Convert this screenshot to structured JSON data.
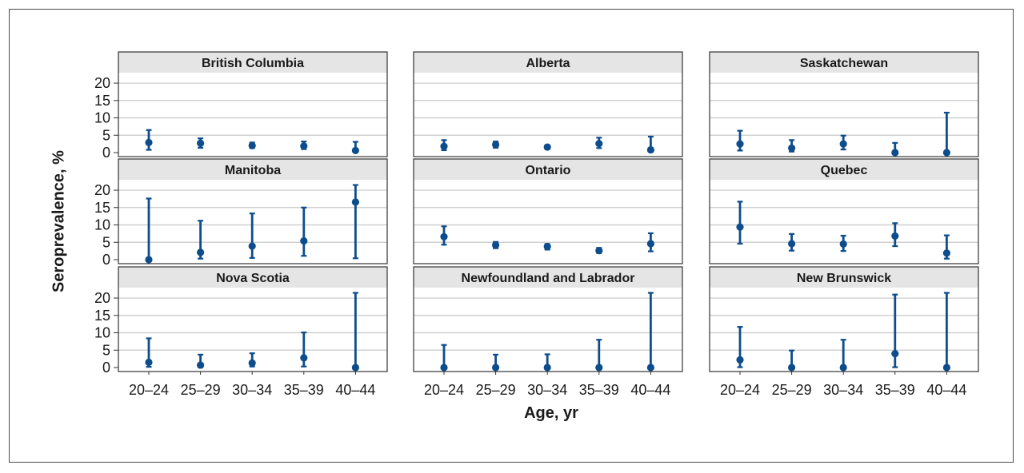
{
  "chart_data": {
    "type": "scatter",
    "subtype": "point-with-error-bars, small multiples 3x3",
    "xlabel": "Age, yr",
    "ylabel": "Seroprevalence, %",
    "categories": [
      "20–24",
      "25–29",
      "30–34",
      "35–39",
      "40–44"
    ],
    "ylim": [
      0,
      23
    ],
    "yticks": [
      0,
      5,
      10,
      15,
      20
    ],
    "grid": true,
    "colors": {
      "marker": "#0d4d8c",
      "grid": "#c8c8c8",
      "strip": "#e5e5e5",
      "panel_border": "#333333"
    },
    "panels": [
      {
        "title": "British Columbia",
        "values": [
          2.9,
          2.7,
          2.0,
          1.9,
          0.6
        ],
        "lower": [
          0.8,
          1.4,
          1.3,
          1.0,
          0.2
        ],
        "upper": [
          6.5,
          4.1,
          2.9,
          3.2,
          3.1
        ]
      },
      {
        "title": "Alberta",
        "values": [
          1.8,
          2.3,
          1.6,
          2.6,
          0.8
        ],
        "lower": [
          0.7,
          1.4,
          1.0,
          1.3,
          0.2
        ],
        "upper": [
          3.6,
          3.2,
          2.1,
          4.3,
          4.6
        ]
      },
      {
        "title": "Saskatchewan",
        "values": [
          2.5,
          1.3,
          2.5,
          0.0,
          0.0
        ],
        "lower": [
          0.6,
          0.3,
          0.9,
          0.0,
          0.0
        ],
        "upper": [
          6.3,
          3.6,
          4.9,
          2.8,
          11.5
        ]
      },
      {
        "title": "Manitoba",
        "values": [
          0.0,
          2.1,
          3.9,
          5.4,
          16.6
        ],
        "lower": [
          0.0,
          0.3,
          0.5,
          1.1,
          0.4
        ],
        "upper": [
          17.6,
          11.2,
          13.3,
          15.0,
          21.5
        ]
      },
      {
        "title": "Ontario",
        "values": [
          6.6,
          4.2,
          3.8,
          2.6,
          4.6
        ],
        "lower": [
          4.3,
          3.3,
          2.9,
          1.9,
          2.4
        ],
        "upper": [
          9.6,
          5.1,
          4.5,
          3.4,
          7.6
        ]
      },
      {
        "title": "Quebec",
        "values": [
          9.4,
          4.6,
          4.5,
          6.8,
          1.9
        ],
        "lower": [
          4.6,
          2.6,
          2.5,
          3.9,
          0.3
        ],
        "upper": [
          16.7,
          7.4,
          6.9,
          10.5,
          7.0
        ]
      },
      {
        "title": "Nova Scotia",
        "values": [
          1.5,
          0.7,
          1.3,
          2.8,
          0.0
        ],
        "lower": [
          0.2,
          0.1,
          0.3,
          0.3,
          0.0
        ],
        "upper": [
          8.4,
          3.7,
          4.1,
          10.1,
          21.5
        ]
      },
      {
        "title": "Newfoundland and Labrador",
        "values": [
          0.0,
          0.0,
          0.0,
          0.0,
          0.0
        ],
        "lower": [
          0.0,
          0.0,
          0.0,
          0.0,
          0.0
        ],
        "upper": [
          6.5,
          3.7,
          3.8,
          8.0,
          21.5
        ]
      },
      {
        "title": "New Brunswick",
        "values": [
          2.2,
          0.0,
          0.0,
          4.0,
          0.0
        ],
        "lower": [
          0.1,
          0.0,
          0.0,
          0.1,
          0.0
        ],
        "upper": [
          11.7,
          4.9,
          8.0,
          21.0,
          21.5
        ]
      }
    ]
  }
}
